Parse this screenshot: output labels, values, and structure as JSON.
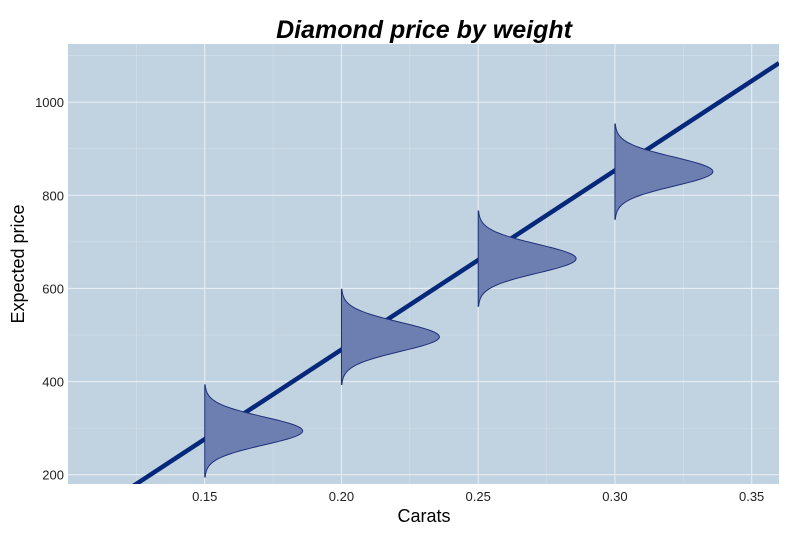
{
  "chart_data": {
    "type": "line",
    "title": "Diamond price by weight",
    "xlabel": "Carats",
    "ylabel": "Expected price",
    "xlim": [
      0.1,
      0.36
    ],
    "ylim": [
      180,
      1125
    ],
    "x_ticks": [
      0.15,
      0.2,
      0.25,
      0.3,
      0.35
    ],
    "x_tick_labels": [
      "0.15",
      "0.20",
      "0.25",
      "0.30",
      "0.35"
    ],
    "y_ticks": [
      200,
      400,
      600,
      800,
      1000
    ],
    "y_tick_labels": [
      "200",
      "400",
      "600",
      "800",
      "1000"
    ],
    "grid": true,
    "legend": "none",
    "colors": {
      "panel": "#c1d2e0",
      "grid_major": "#e6edf3",
      "line": "#06287a",
      "density_fill": "#6d7fb0",
      "density_stroke": "#1f2f78"
    },
    "series": [
      {
        "x": [
          0.1,
          0.36
        ],
        "y": [
          84,
          1084
        ]
      }
    ],
    "densities": [
      {
        "x": 0.15,
        "mean": 294,
        "sd": 30
      },
      {
        "x": 0.2,
        "mean": 496,
        "sd": 31
      },
      {
        "x": 0.25,
        "mean": 664,
        "sd": 31
      },
      {
        "x": 0.3,
        "mean": 851,
        "sd": 31
      }
    ]
  }
}
